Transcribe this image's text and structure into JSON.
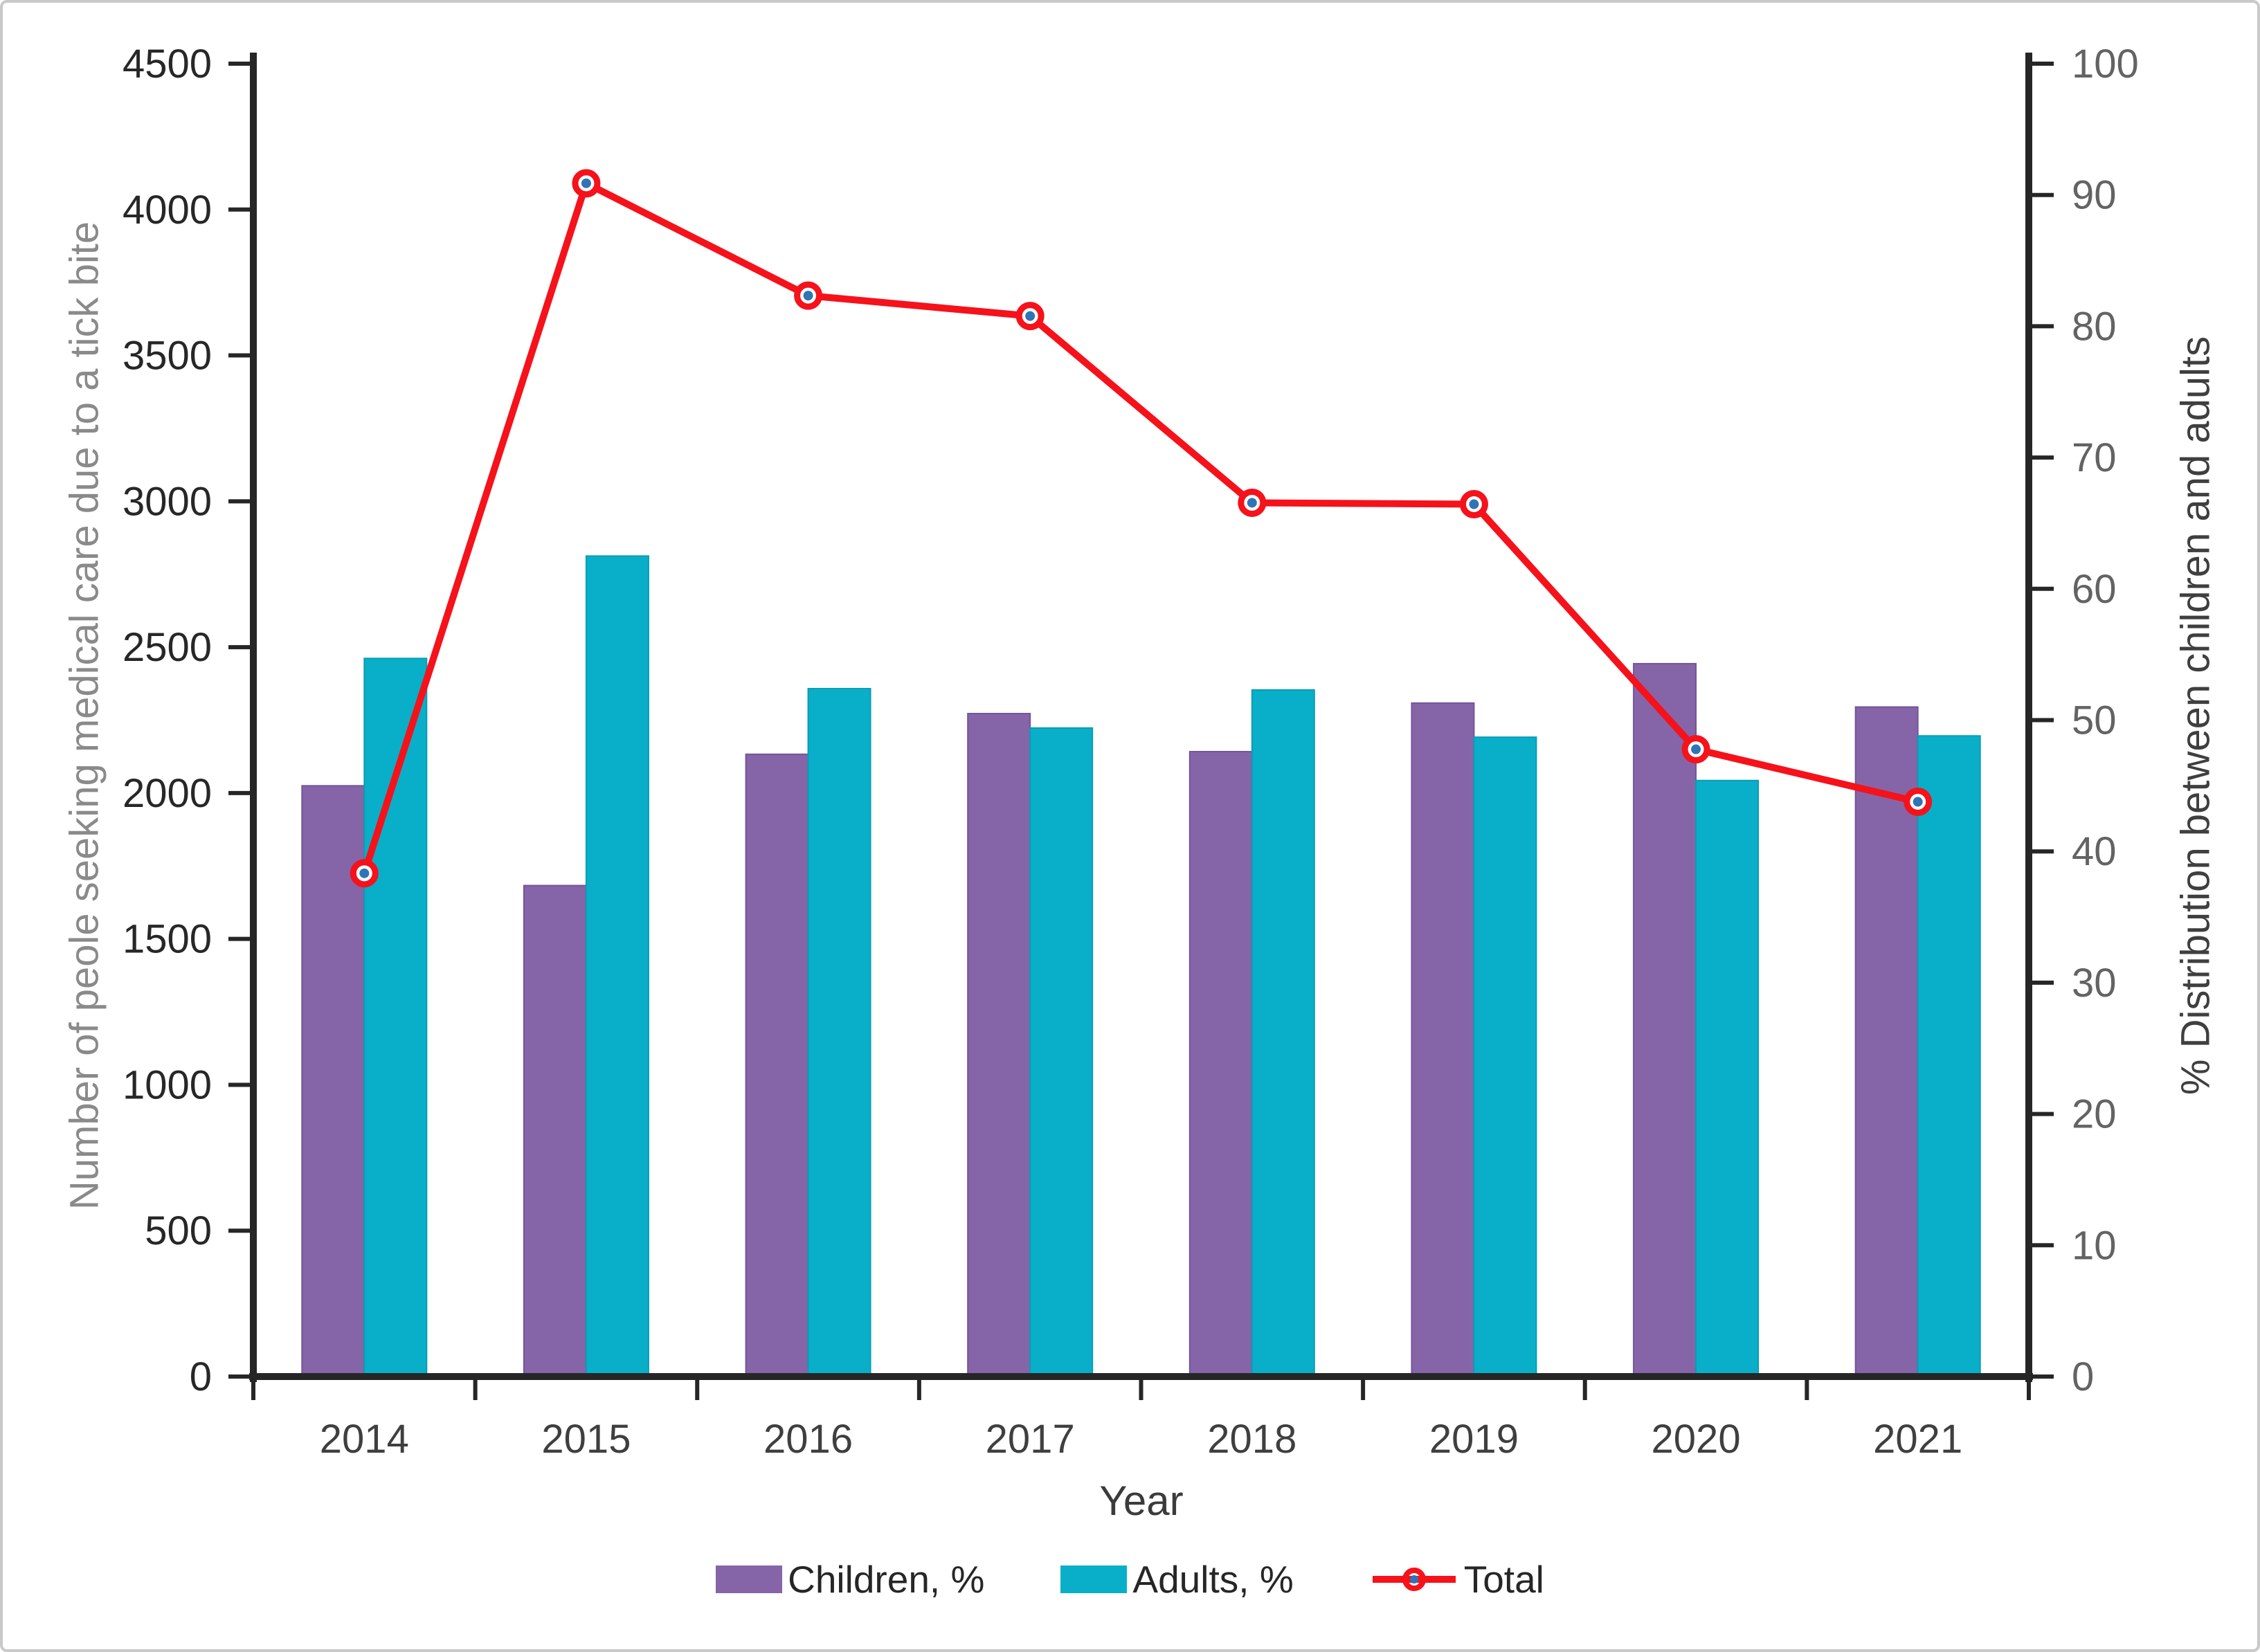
{
  "chart_data": {
    "type": "bar+line",
    "title": "",
    "xlabel": "Year",
    "categories": [
      "2014",
      "2015",
      "2016",
      "2017",
      "2018",
      "2019",
      "2020",
      "2021"
    ],
    "series": [
      {
        "name": "Children, %",
        "type": "bar",
        "axis": "right",
        "color": "#8565A8",
        "edge_color": "#74549a",
        "values": [
          45.0,
          37.4,
          47.4,
          50.5,
          47.6,
          51.3,
          54.3,
          51.0
        ]
      },
      {
        "name": "Adults, %",
        "type": "bar",
        "axis": "right",
        "color": "#09AFC8",
        "edge_color": "#0a9db4",
        "values": [
          54.7,
          62.5,
          52.4,
          49.4,
          52.3,
          48.7,
          45.4,
          48.8
        ]
      },
      {
        "name": "Total",
        "type": "line",
        "axis": "left",
        "color": "#F5121A",
        "marker_fill": "#2E75B6",
        "values": [
          1725,
          4090,
          3705,
          3635,
          2995,
          2990,
          2150,
          1970
        ]
      }
    ],
    "left_axis": {
      "label": "Number of peole seeking medical care due to a tick bite",
      "min": 0,
      "max": 4500,
      "step": 500,
      "tick_labels": [
        "0",
        "500",
        "1000",
        "1500",
        "2000",
        "2500",
        "3000",
        "3500",
        "4000",
        "4500"
      ]
    },
    "right_axis": {
      "label": "% Distribution between children and adults",
      "min": 0,
      "max": 100,
      "step": 10,
      "tick_labels": [
        "0",
        "10",
        "20",
        "30",
        "40",
        "50",
        "60",
        "70",
        "80",
        "90",
        "100"
      ]
    },
    "grid": false,
    "legend_position": "bottom"
  },
  "legend": {
    "items": [
      {
        "label": "Children, %"
      },
      {
        "label": "Adults, %"
      },
      {
        "label": "Total"
      }
    ]
  }
}
